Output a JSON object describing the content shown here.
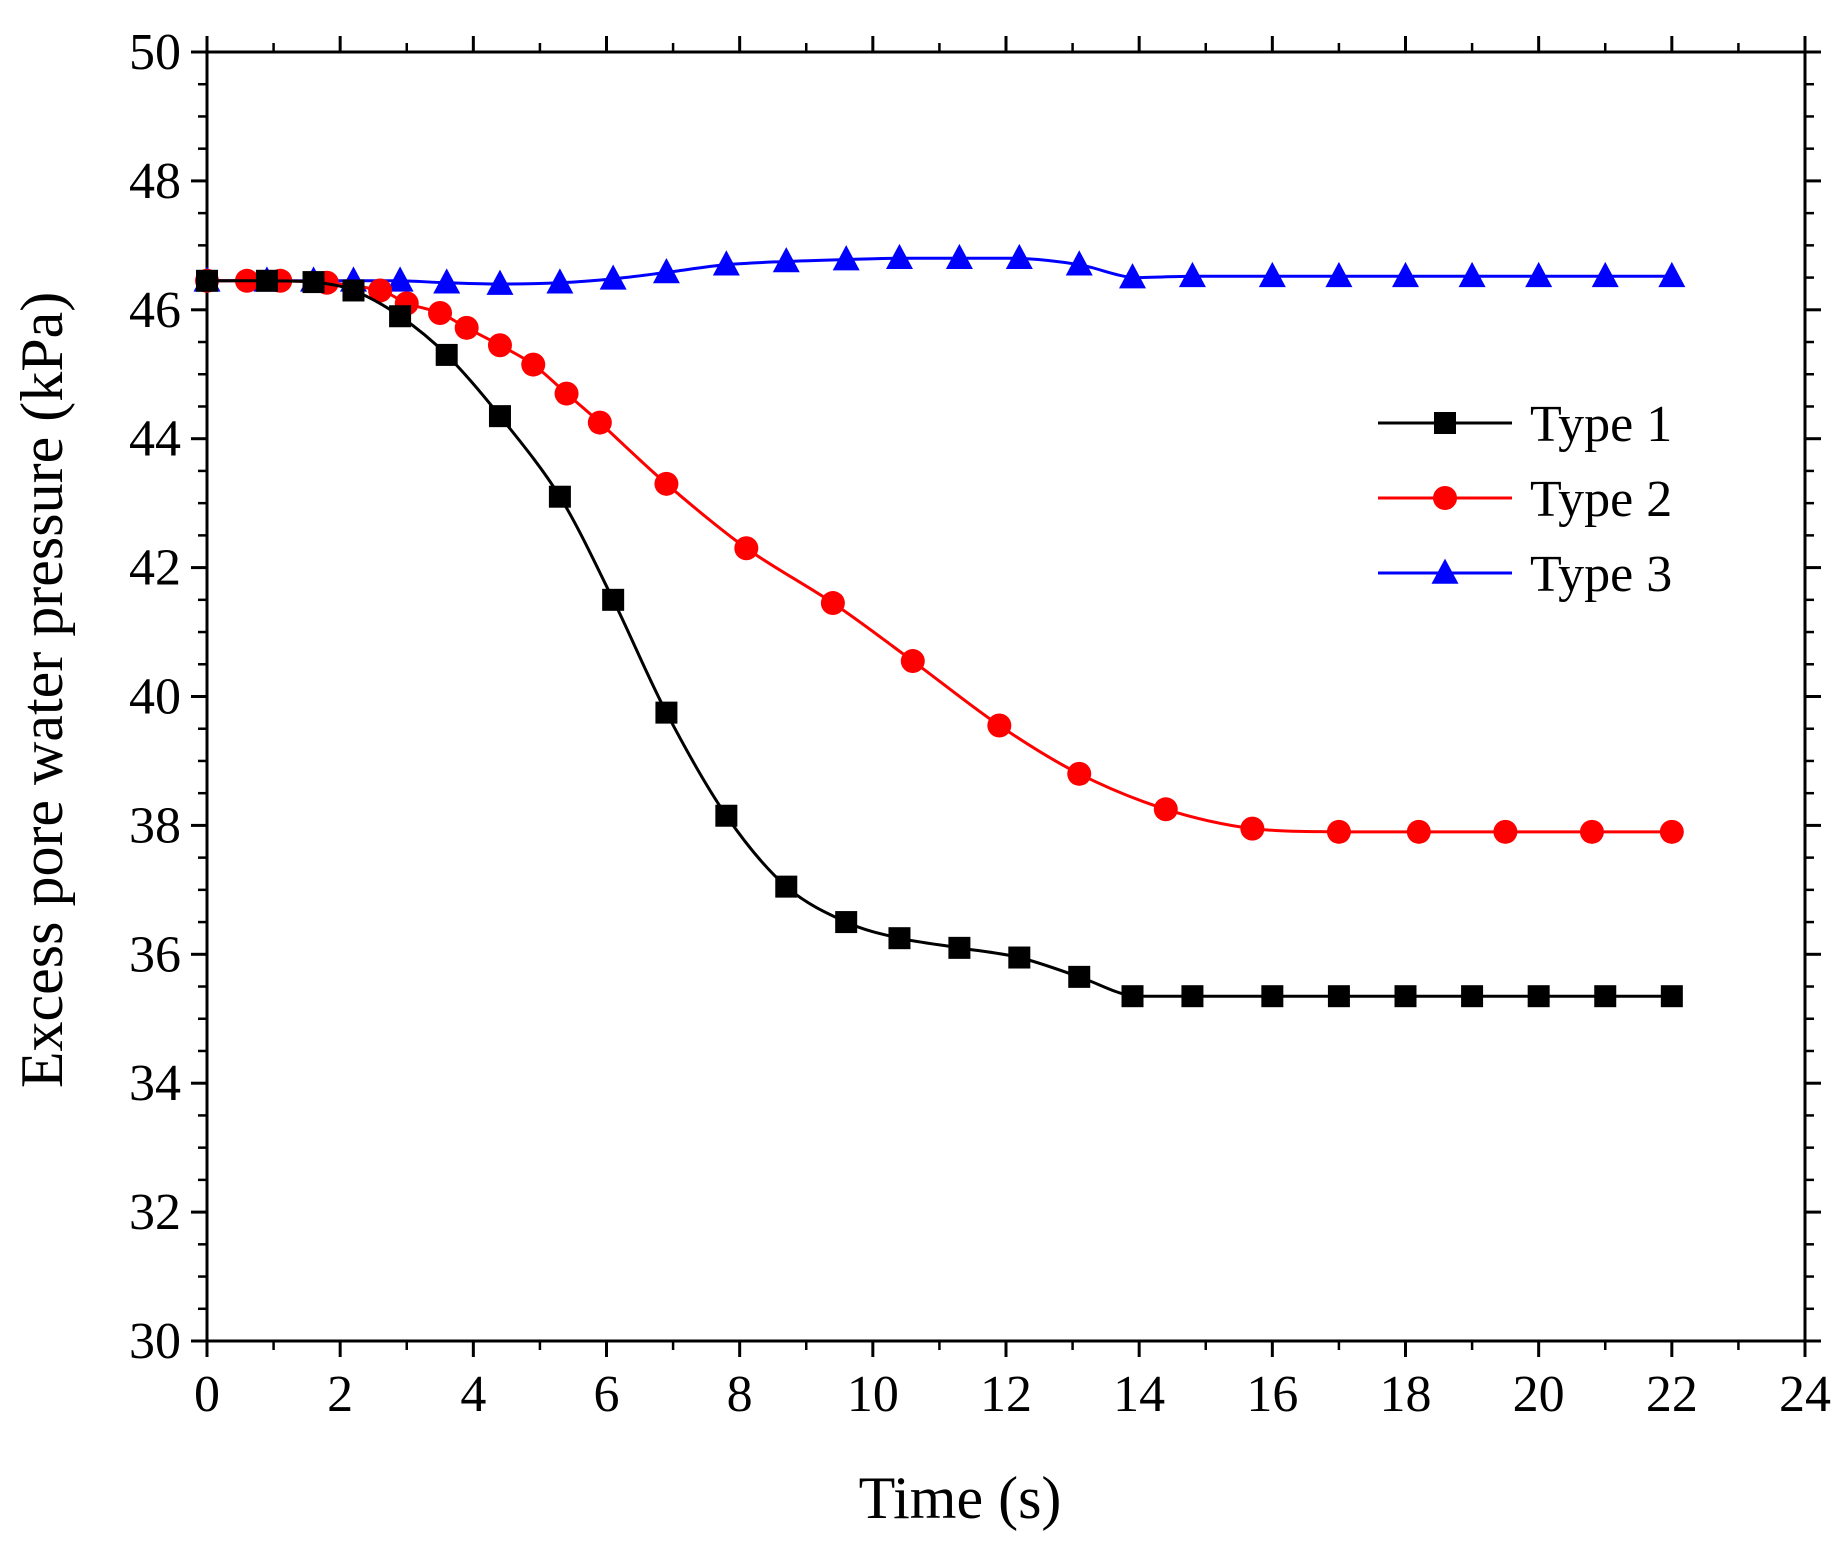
{
  "chart_data": {
    "type": "line",
    "xlabel": "Time (s)",
    "ylabel": "Excess pore water pressure (kPa)",
    "xlim": [
      0,
      24
    ],
    "ylim": [
      30,
      50
    ],
    "xticks": [
      "0",
      "2",
      "4",
      "6",
      "8",
      "10",
      "12",
      "14",
      "16",
      "18",
      "20",
      "22",
      "24"
    ],
    "yticks": [
      "30",
      "32",
      "34",
      "36",
      "38",
      "40",
      "42",
      "44",
      "46",
      "48",
      "50"
    ],
    "grid": false,
    "legend_position": "right",
    "series": [
      {
        "name": "Type 1",
        "color": "#000000",
        "marker": "square",
        "x": [
          0,
          0.9,
          1.6,
          2.2,
          2.9,
          3.6,
          4.4,
          5.3,
          6.1,
          6.9,
          7.8,
          8.7,
          9.6,
          10.4,
          11.3,
          12.2,
          13.1,
          13.9,
          14.8,
          16,
          17,
          18,
          19,
          20,
          21,
          22
        ],
        "y": [
          46.45,
          46.45,
          46.43,
          46.3,
          45.9,
          45.3,
          44.35,
          43.1,
          41.5,
          39.75,
          38.15,
          37.05,
          36.5,
          36.25,
          36.1,
          35.95,
          35.65,
          35.35,
          35.35,
          35.35,
          35.35,
          35.35,
          35.35,
          35.35,
          35.35,
          35.35
        ]
      },
      {
        "name": "Type 2",
        "color": "#ff0000",
        "marker": "circle",
        "x": [
          0,
          0.6,
          1.1,
          1.8,
          2.6,
          3,
          3.5,
          3.9,
          4.4,
          4.9,
          5.4,
          5.9,
          6.9,
          8.1,
          9.4,
          10.6,
          11.9,
          13.1,
          14.4,
          15.7,
          17,
          18.2,
          19.5,
          20.8,
          22
        ],
        "y": [
          46.45,
          46.45,
          46.45,
          46.42,
          46.3,
          46.1,
          45.95,
          45.72,
          45.45,
          45.15,
          44.7,
          44.25,
          43.3,
          42.3,
          41.45,
          40.55,
          39.55,
          38.8,
          38.25,
          37.95,
          37.9,
          37.9,
          37.9,
          37.9,
          37.9
        ]
      },
      {
        "name": "Type 3",
        "color": "#0000ff",
        "marker": "triangle",
        "x": [
          0,
          0.9,
          1.6,
          2.2,
          2.9,
          3.6,
          4.4,
          5.3,
          6.1,
          6.9,
          7.8,
          8.7,
          9.6,
          10.4,
          11.3,
          12.2,
          13.1,
          13.9,
          14.8,
          16,
          17,
          18,
          19,
          20,
          21,
          22
        ],
        "y": [
          46.45,
          46.45,
          46.45,
          46.45,
          46.45,
          46.42,
          46.4,
          46.42,
          46.48,
          46.58,
          46.7,
          46.75,
          46.78,
          46.8,
          46.8,
          46.8,
          46.7,
          46.5,
          46.52,
          46.52,
          46.52,
          46.52,
          46.52,
          46.52,
          46.52,
          46.52
        ]
      }
    ]
  }
}
